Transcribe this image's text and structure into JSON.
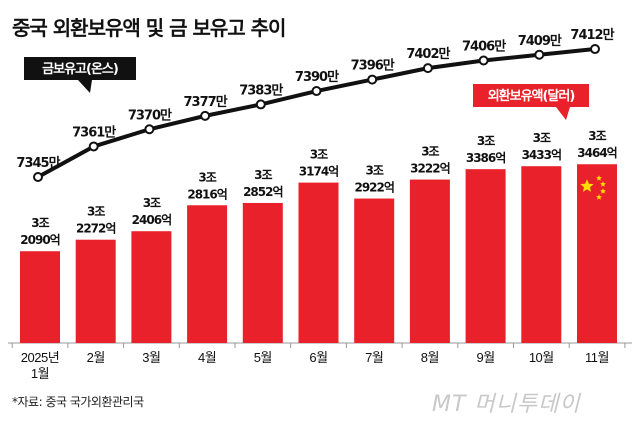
{
  "title": "중국 외환보유액 및 금 보유고 추이",
  "source": "*자료: 중국 국가외환관리국",
  "watermark": "MT 머니투데이",
  "chart_data": [
    {
      "type": "bar",
      "series_label": "외환보유액(달러)",
      "categories": [
        "2025년\n1월",
        "2월",
        "3월",
        "4월",
        "5월",
        "6월",
        "7월",
        "8월",
        "9월",
        "10월",
        "11월"
      ],
      "values_eok": [
        32090,
        32272,
        32406,
        32816,
        32852,
        33174,
        32922,
        33222,
        33386,
        33433,
        33464
      ],
      "data_labels_top": [
        "3조",
        "3조",
        "3조",
        "3조",
        "3조",
        "3조",
        "3조",
        "3조",
        "3조",
        "3조",
        "3조"
      ],
      "data_labels_bottom": [
        "2090억",
        "2272억",
        "2406억",
        "2816억",
        "2852억",
        "3174억",
        "2922억",
        "3222억",
        "3386억",
        "3433억",
        "3464억"
      ],
      "color": "#e8212a"
    },
    {
      "type": "line",
      "series_label": "금보유고(온스)",
      "values_man": [
        7345,
        7361,
        7370,
        7377,
        7383,
        7390,
        7396,
        7402,
        7406,
        7409,
        7412
      ],
      "data_labels": [
        "7345만",
        "7361만",
        "7370만",
        "7377만",
        "7383만",
        "7390만",
        "7396만",
        "7402만",
        "7406만",
        "7409만",
        "7412만"
      ],
      "color": "#111111"
    }
  ]
}
